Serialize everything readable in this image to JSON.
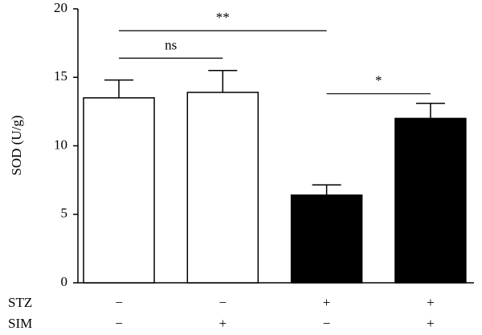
{
  "chart_data": {
    "type": "bar",
    "y_label": "SOD (U/g)",
    "values": [
      13.5,
      13.9,
      6.4,
      12.0
    ],
    "errors": [
      1.3,
      1.6,
      0.75,
      1.1
    ],
    "colors": [
      "#ffffff",
      "#ffffff",
      "#000000",
      "#000000"
    ],
    "ylim": [
      0,
      20
    ],
    "yticks": [
      0,
      5,
      10,
      15,
      20
    ],
    "conditions": [
      {
        "name": "STZ",
        "signs": [
          "−",
          "−",
          "+",
          "+"
        ]
      },
      {
        "name": "SIM",
        "signs": [
          "−",
          "+",
          "−",
          "+"
        ]
      }
    ],
    "comparisons": [
      {
        "label": "**",
        "from": 0,
        "to": 2,
        "y": 18.4
      },
      {
        "label": "ns",
        "from": 0,
        "to": 1,
        "y": 16.4
      },
      {
        "label": "*",
        "from": 2,
        "to": 3,
        "y": 13.8
      }
    ]
  }
}
